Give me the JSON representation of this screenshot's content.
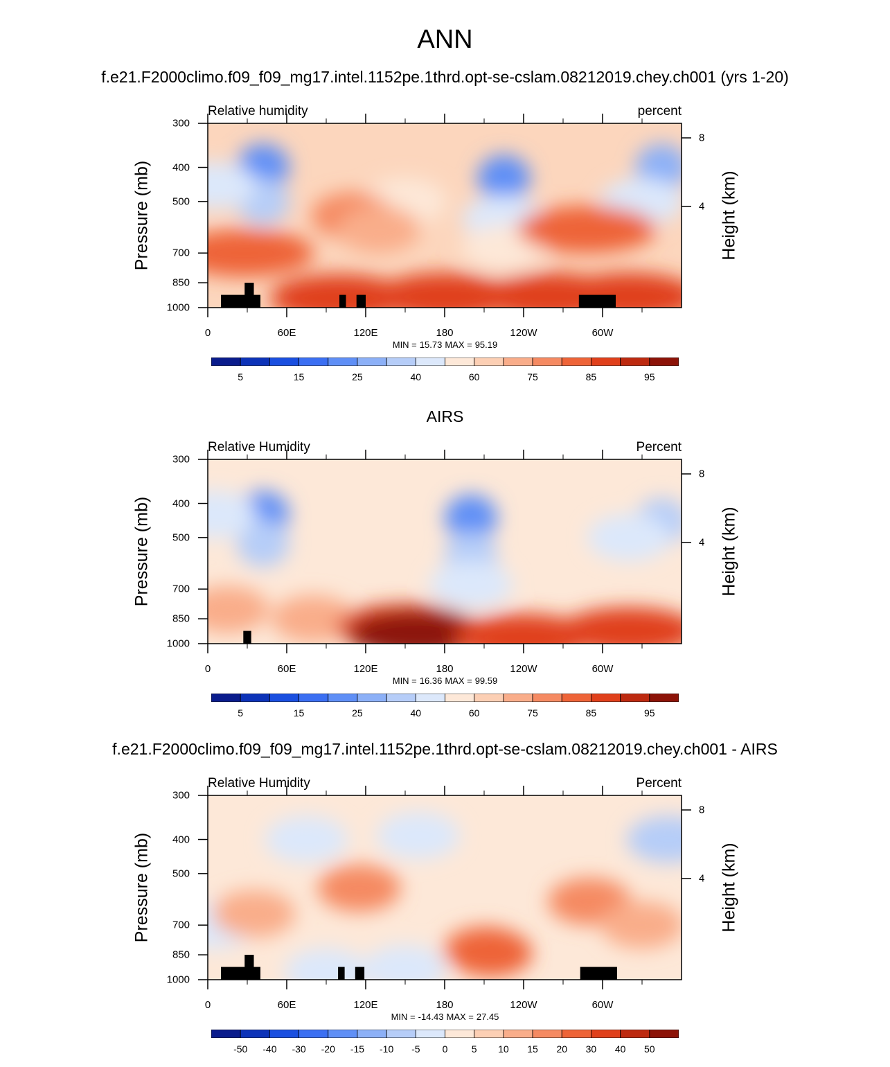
{
  "main_title": "ANN",
  "chart_data": [
    {
      "type": "heatmap",
      "title": "f.e21.F2000climo.f09_f09_mg17.intel.1152pe.1thrd.opt-se-cslam.08212019.chey.ch001 (yrs 1-20)",
      "left_label": "Relative humidity",
      "right_label": "percent",
      "ylabel": "Pressure (mb)",
      "right_axis_label": "Height (km)",
      "y_ticks": [
        "300",
        "400",
        "500",
        "700",
        "850",
        "1000"
      ],
      "right_ticks": [
        "8",
        "4"
      ],
      "x_ticks": [
        "0",
        "60E",
        "120E",
        "180",
        "120W",
        "60W"
      ],
      "min_label": "MIN =",
      "min": "15.73",
      "max_label": "MAX =",
      "max": "95.19",
      "colorbar_labels": [
        "5",
        "15",
        "25",
        "40",
        "60",
        "75",
        "85",
        "95"
      ],
      "colorbar_colors": [
        "#0a1c8c",
        "#0d33b8",
        "#1a4fe0",
        "#3b6ff2",
        "#5f8ff6",
        "#8cb0f7",
        "#b6cdf8",
        "#dce8fb",
        "#fde8d8",
        "#fccfb4",
        "#f9ad8a",
        "#f58a62",
        "#ee6438",
        "#e0401b",
        "#bd2a10",
        "#8c1308"
      ],
      "field": {
        "base": "#fcd6bd",
        "features": [
          {
            "lon": 42,
            "lev": 400,
            "value": 20
          },
          {
            "lon": 42,
            "lev": 500,
            "value": 35
          },
          {
            "lon": 5,
            "lev": 450,
            "value": 45
          },
          {
            "lon": 150,
            "lev": 500,
            "value": 55
          },
          {
            "lon": 225,
            "lev": 430,
            "value": 20
          },
          {
            "lon": 225,
            "lev": 560,
            "value": 40
          },
          {
            "lon": 225,
            "lev": 680,
            "value": 50
          },
          {
            "lon": 345,
            "lev": 400,
            "value": 25
          },
          {
            "lon": 330,
            "lev": 500,
            "value": 40
          },
          {
            "lon": 110,
            "lev": 550,
            "value": 75
          },
          {
            "lon": 130,
            "lev": 600,
            "value": 72
          },
          {
            "lon": 28,
            "lev": 700,
            "value": 82
          },
          {
            "lon": 288,
            "lev": 600,
            "value": 82
          },
          {
            "lon": 100,
            "lev": 940,
            "value": 88
          },
          {
            "lon": 180,
            "lev": 930,
            "value": 88
          },
          {
            "lon": 260,
            "lev": 930,
            "value": 86
          },
          {
            "lon": 320,
            "lev": 930,
            "value": 86
          }
        ],
        "topography": [
          {
            "lon0": 10,
            "lon1": 40,
            "top": 920
          },
          {
            "lon0": 28,
            "lon1": 35,
            "top": 850
          },
          {
            "lon0": 100,
            "lon1": 105,
            "top": 920
          },
          {
            "lon0": 113,
            "lon1": 120,
            "top": 920
          },
          {
            "lon0": 282,
            "lon1": 310,
            "top": 920
          }
        ]
      }
    },
    {
      "type": "heatmap",
      "title": "AIRS",
      "left_label": "Relative Humidity",
      "right_label": "Percent",
      "ylabel": "Pressure (mb)",
      "right_axis_label": "Height (km)",
      "y_ticks": [
        "300",
        "400",
        "500",
        "700",
        "850",
        "1000"
      ],
      "right_ticks": [
        "8",
        "4"
      ],
      "x_ticks": [
        "0",
        "60E",
        "120E",
        "180",
        "120W",
        "60W"
      ],
      "min_label": "MIN =",
      "min": "16.36",
      "max_label": "MAX =",
      "max": "99.59",
      "colorbar_labels": [
        "5",
        "15",
        "25",
        "40",
        "60",
        "75",
        "85",
        "95"
      ],
      "colorbar_colors": [
        "#0a1c8c",
        "#0d33b8",
        "#1a4fe0",
        "#3b6ff2",
        "#5f8ff6",
        "#8cb0f7",
        "#b6cdf8",
        "#dce8fb",
        "#fde8d8",
        "#fccfb4",
        "#f9ad8a",
        "#f58a62",
        "#ee6438",
        "#e0401b",
        "#bd2a10",
        "#8c1308"
      ],
      "field": {
        "base": "#fde8d8",
        "features": [
          {
            "lon": 42,
            "lev": 430,
            "value": 20
          },
          {
            "lon": 42,
            "lev": 520,
            "value": 35
          },
          {
            "lon": 5,
            "lev": 430,
            "value": 45
          },
          {
            "lon": 200,
            "lev": 440,
            "value": 20
          },
          {
            "lon": 200,
            "lev": 560,
            "value": 35
          },
          {
            "lon": 200,
            "lev": 680,
            "value": 48
          },
          {
            "lon": 345,
            "lev": 450,
            "value": 35
          },
          {
            "lon": 320,
            "lev": 500,
            "value": 45
          },
          {
            "lon": 15,
            "lev": 800,
            "value": 70
          },
          {
            "lon": 80,
            "lev": 850,
            "value": 72
          },
          {
            "lon": 150,
            "lev": 900,
            "value": 88
          },
          {
            "lon": 160,
            "lev": 940,
            "value": 95
          },
          {
            "lon": 240,
            "lev": 960,
            "value": 88
          },
          {
            "lon": 320,
            "lev": 920,
            "value": 85
          }
        ],
        "topography": [
          {
            "lon0": 27,
            "lon1": 33,
            "top": 920
          }
        ]
      }
    },
    {
      "type": "heatmap",
      "title": "f.e21.F2000climo.f09_f09_mg17.intel.1152pe.1thrd.opt-se-cslam.08212019.chey.ch001 - AIRS",
      "left_label": "Relative Humidity",
      "right_label": "Percent",
      "ylabel": "Pressure (mb)",
      "right_axis_label": "Height (km)",
      "y_ticks": [
        "300",
        "400",
        "500",
        "700",
        "850",
        "1000"
      ],
      "right_ticks": [
        "8",
        "4"
      ],
      "x_ticks": [
        "0",
        "60E",
        "120E",
        "180",
        "120W",
        "60W"
      ],
      "min_label": "MIN =",
      "min": "-14.43",
      "max_label": "MAX =",
      "max": "27.45",
      "colorbar_labels": [
        "-50",
        "-40",
        "-30",
        "-20",
        "-15",
        "-10",
        "-5",
        "0",
        "5",
        "10",
        "15",
        "20",
        "30",
        "40",
        "50"
      ],
      "colorbar_colors": [
        "#0a1c8c",
        "#0d33b8",
        "#1a4fe0",
        "#3b6ff2",
        "#5f8ff6",
        "#8cb0f7",
        "#b6cdf8",
        "#dce8fb",
        "#fde8d8",
        "#fccfb4",
        "#f9ad8a",
        "#f58a62",
        "#ee6438",
        "#e0401b",
        "#bd2a10",
        "#8c1308"
      ],
      "field": {
        "base": "#fde8d8",
        "features": [
          {
            "lon": 75,
            "lev": 400,
            "value": -5
          },
          {
            "lon": 160,
            "lev": 390,
            "value": -5
          },
          {
            "lon": 350,
            "lev": 400,
            "value": -8
          },
          {
            "lon": 5,
            "lev": 700,
            "value": -3
          },
          {
            "lon": 150,
            "lev": 930,
            "value": -5
          },
          {
            "lon": 90,
            "lev": 950,
            "value": -3
          },
          {
            "lon": 35,
            "lev": 650,
            "value": 12
          },
          {
            "lon": 115,
            "lev": 550,
            "value": 15
          },
          {
            "lon": 290,
            "lev": 600,
            "value": 15
          },
          {
            "lon": 210,
            "lev": 820,
            "value": 15
          },
          {
            "lon": 215,
            "lev": 840,
            "value": 20
          },
          {
            "lon": 330,
            "lev": 700,
            "value": 10
          }
        ],
        "topography": [
          {
            "lon0": 10,
            "lon1": 40,
            "top": 920
          },
          {
            "lon0": 28,
            "lon1": 35,
            "top": 850
          },
          {
            "lon0": 99,
            "lon1": 104,
            "top": 920
          },
          {
            "lon0": 112,
            "lon1": 119,
            "top": 920
          },
          {
            "lon0": 283,
            "lon1": 311,
            "top": 920
          }
        ]
      }
    }
  ]
}
